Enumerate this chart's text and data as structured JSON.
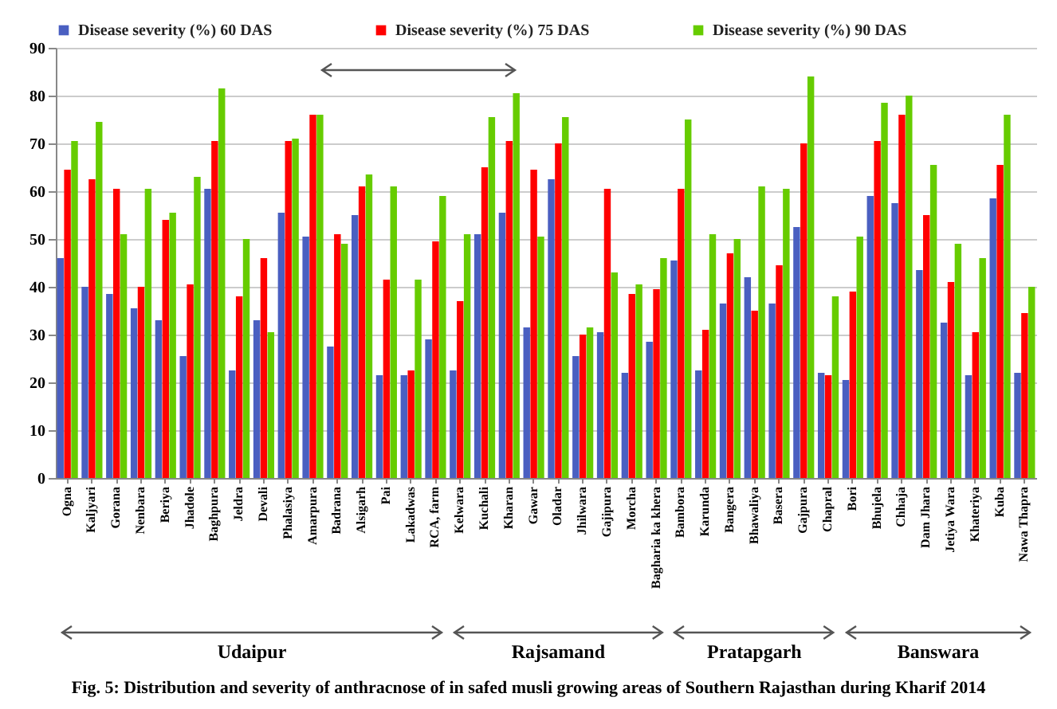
{
  "chart_data": {
    "type": "bar",
    "categories": [
      "Ogna",
      "Kaljyari",
      "Gorana",
      "Nenbara",
      "Beriya",
      "Jhadole",
      "Baghpura",
      "Jeldra",
      "Devali",
      "Phalasiya",
      "Amarpura",
      "Badrana",
      "Alsigarh",
      "Pai",
      "Lakadwas",
      "RCA, farm",
      "Kelwara",
      "Kuchali",
      "Kharan",
      "Gawar",
      "Oladar",
      "Jhilwara",
      "Gajipura",
      "Morcha",
      "Bagharia ka khera",
      "Bambora",
      "Karunda",
      "Bangera",
      "Bhawaliya",
      "Basera",
      "Gajpura",
      "Chapral",
      "Bori",
      "Bhujela",
      "Chhaja",
      "Dam Jhara",
      "Jetiya Wara",
      "Khateriya",
      "Kuba",
      "Nawa Thapra"
    ],
    "series": [
      {
        "name": "Disease severity (%)  60 DAS",
        "color": "#4a5fc1",
        "values": [
          46,
          40,
          38.5,
          35.5,
          33,
          25.5,
          60.5,
          22.5,
          33,
          55.5,
          50.5,
          27.5,
          55,
          21.5,
          21.5,
          29,
          22.5,
          51,
          55.5,
          31.5,
          62.5,
          25.5,
          30.5,
          22,
          28.5,
          45.5,
          22.5,
          36.5,
          42,
          36.5,
          52.5,
          22,
          20.5,
          59,
          57.5,
          43.5,
          32.5,
          21.5,
          58.5,
          22
        ]
      },
      {
        "name": "Disease severity (%)  75 DAS",
        "color": "#ff0000",
        "values": [
          64.5,
          62.5,
          60.5,
          40,
          54,
          40.5,
          70.5,
          38,
          46,
          70.5,
          76,
          51,
          61,
          41.5,
          22.5,
          49.5,
          37,
          65,
          70.5,
          64.5,
          70,
          30,
          60.5,
          38.5,
          39.5,
          60.5,
          31,
          47,
          35,
          44.5,
          70,
          21.5,
          39,
          70.5,
          76,
          55,
          41,
          30.5,
          65.5,
          34.5
        ]
      },
      {
        "name": "Disease severity (%)  90 DAS",
        "color": "#66cc00",
        "values": [
          70.5,
          74.5,
          51,
          60.5,
          55.5,
          63,
          81.5,
          50,
          30.5,
          71,
          76,
          49,
          63.5,
          61,
          41.5,
          59,
          51,
          75.5,
          80.5,
          50.5,
          75.5,
          31.5,
          43,
          40.5,
          46,
          75,
          51,
          50,
          61,
          60.5,
          84,
          38,
          50.5,
          78.5,
          80,
          65.5,
          49,
          46,
          76,
          40
        ]
      }
    ],
    "ylim": [
      0,
      90
    ],
    "yticks": [
      0,
      10,
      20,
      30,
      40,
      50,
      60,
      70,
      80,
      90
    ],
    "grid": "y",
    "legend": "top",
    "annotations": [
      "Udaipur",
      "Rajsamand",
      "Pratapgarh",
      "Banswara",
      "Fig. 5: Distribution and severity of anthracnose of in safed musli growing areas of Southern Rajasthan during Kharif 2014"
    ]
  }
}
